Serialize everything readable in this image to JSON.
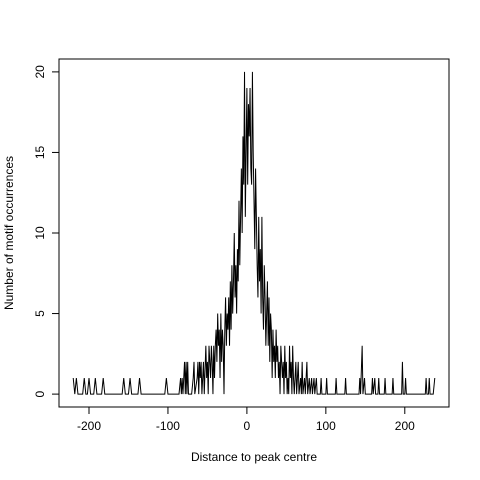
{
  "chart_data": {
    "type": "line",
    "xlabel": "Distance to peak centre",
    "ylabel": "Number of motif occurrences",
    "x": [
      -220,
      -218,
      -216,
      -214,
      -208,
      -206,
      -204,
      -202,
      -200,
      -198,
      -194,
      -192,
      -190,
      -184,
      -182,
      -180,
      -158,
      -156,
      -154,
      -150,
      -148,
      -146,
      -138,
      -136,
      -134,
      -104,
      -102,
      -100,
      -86,
      -84,
      -83,
      -82,
      -81,
      -80,
      -79,
      -78,
      -77,
      -76,
      -75,
      -74,
      -70,
      -68,
      -67,
      -66,
      -63,
      -62,
      -61,
      -60,
      -59,
      -58,
      -57,
      -56,
      -55,
      -54,
      -52,
      -51,
      -50,
      -49,
      -48,
      -47,
      -46,
      -45,
      -44,
      -43,
      -42,
      -41,
      -40,
      -39,
      -38,
      -37,
      -36,
      -35,
      -34,
      -33,
      -32,
      -31,
      -30,
      -29,
      -28,
      -27,
      -26,
      -25,
      -24,
      -23,
      -22,
      -21,
      -20,
      -19,
      -18,
      -17,
      -16,
      -15,
      -14,
      -13,
      -12,
      -11,
      -10,
      -9,
      -8,
      -7,
      -6,
      -5,
      -4,
      -3,
      -2,
      -1,
      0,
      1,
      2,
      3,
      4,
      5,
      6,
      7,
      8,
      9,
      10,
      11,
      12,
      13,
      14,
      15,
      16,
      17,
      18,
      19,
      20,
      21,
      22,
      23,
      24,
      25,
      26,
      27,
      28,
      29,
      30,
      31,
      32,
      33,
      34,
      35,
      36,
      37,
      38,
      39,
      40,
      41,
      42,
      43,
      44,
      45,
      46,
      47,
      48,
      49,
      50,
      51,
      52,
      53,
      54,
      55,
      56,
      57,
      58,
      59,
      60,
      62,
      63,
      64,
      65,
      66,
      68,
      69,
      70,
      71,
      73,
      74,
      76,
      77,
      79,
      80,
      82,
      83,
      85,
      86,
      88,
      89,
      93,
      94,
      95,
      100,
      101,
      102,
      112,
      113,
      114,
      124,
      125,
      126,
      142,
      143,
      144,
      146,
      147,
      149,
      150,
      158,
      159,
      160,
      162,
      163,
      166,
      167,
      168,
      174,
      175,
      176,
      184,
      185,
      186,
      196,
      197,
      198,
      200,
      201,
      202,
      226,
      227,
      228,
      230,
      231,
      232,
      236,
      238
    ],
    "values": [
      1,
      0,
      1,
      0,
      0,
      1,
      0,
      0,
      1,
      0,
      0,
      1,
      0,
      0,
      1,
      0,
      0,
      1,
      0,
      0,
      1,
      0,
      0,
      1,
      0,
      0,
      1,
      0,
      0,
      1,
      0,
      1,
      0,
      1,
      2,
      0,
      2,
      0,
      2,
      0,
      0,
      1,
      2,
      0,
      1,
      2,
      0,
      2,
      1,
      2,
      0,
      1,
      2,
      0,
      3,
      1,
      2,
      0,
      3,
      2,
      1,
      3,
      2,
      0,
      3,
      1,
      3,
      4,
      2,
      5,
      3,
      4,
      1,
      5,
      2,
      4,
      3,
      0,
      4,
      6,
      3,
      5,
      4,
      6,
      3,
      7,
      4,
      8,
      5,
      7,
      10,
      6,
      8,
      5,
      9,
      7,
      12,
      8,
      11,
      14,
      10,
      16,
      13,
      20,
      11,
      15,
      19,
      13,
      18,
      16,
      19,
      14,
      13,
      20,
      15,
      12,
      9,
      14,
      11,
      8,
      6,
      11,
      7,
      9,
      5,
      11,
      6,
      4,
      8,
      6,
      3,
      5,
      7,
      3,
      6,
      2,
      5,
      4,
      1,
      4,
      2,
      3,
      1,
      4,
      2,
      3,
      1,
      2,
      0,
      3,
      2,
      1,
      2,
      0,
      3,
      1,
      2,
      0,
      1,
      0,
      3,
      1,
      2,
      0,
      3,
      1,
      0,
      2,
      0,
      1,
      2,
      0,
      1,
      0,
      2,
      0,
      1,
      0,
      2,
      0,
      1,
      0,
      1,
      0,
      1,
      0,
      1,
      0,
      0,
      1,
      0,
      0,
      1,
      0,
      0,
      1,
      0,
      0,
      1,
      0,
      0,
      1,
      0,
      3,
      0,
      1,
      0,
      0,
      1,
      0,
      1,
      0,
      0,
      1,
      0,
      0,
      1,
      0,
      0,
      1,
      0,
      0,
      2,
      0,
      0,
      1,
      0,
      0,
      1,
      0,
      0,
      1,
      0,
      0,
      1
    ],
    "color": "#000000",
    "xlim": [
      -238,
      256
    ],
    "ylim": [
      -0.8,
      20.8
    ],
    "xticks": [
      -200,
      -100,
      0,
      100,
      200
    ],
    "yticks": [
      0,
      5,
      10,
      15,
      20
    ]
  }
}
